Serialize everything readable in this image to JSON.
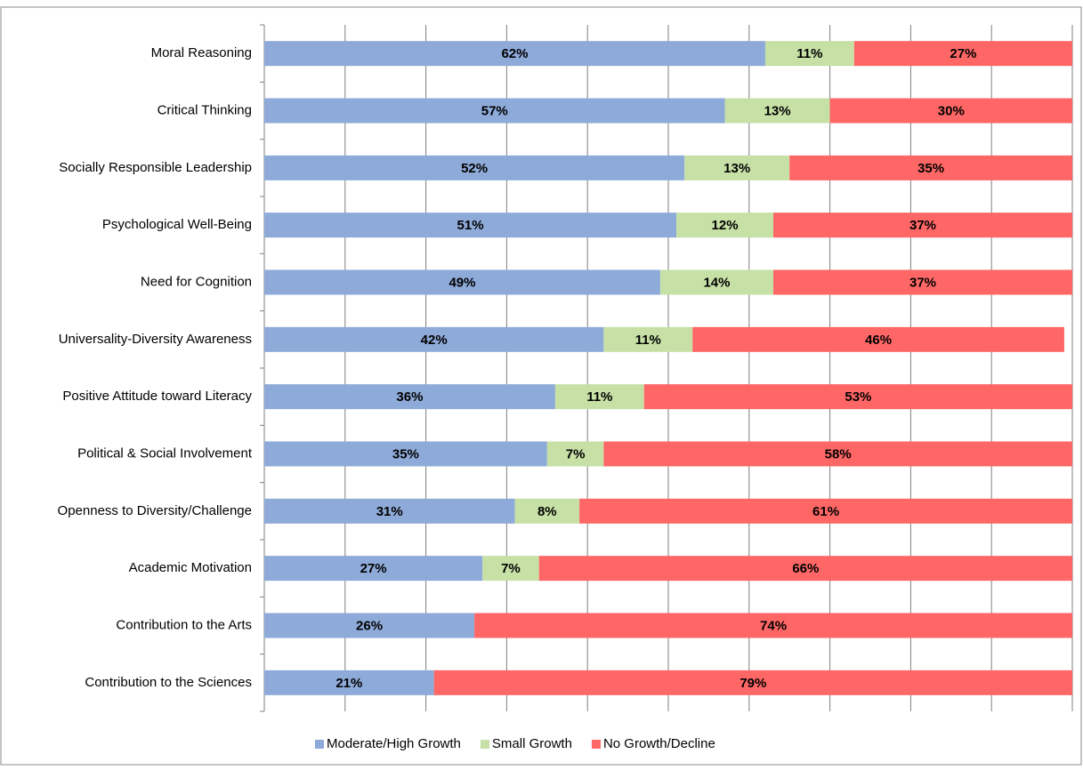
{
  "chart_data": {
    "type": "stacked-bar-horizontal",
    "categories": [
      "Moral Reasoning",
      "Critical Thinking",
      "Socially Responsible Leadership",
      "Psychological Well-Being",
      "Need for Cognition",
      "Universality-Diversity Awareness",
      "Positive Attitude toward Literacy",
      "Political & Social Involvement",
      "Openness to Diversity/Challenge",
      "Academic Motivation",
      "Contribution to the Arts",
      "Contribution to the Sciences"
    ],
    "series": [
      {
        "name": "Moderate/High Growth",
        "color": "#8eaad9",
        "values": [
          62,
          57,
          52,
          51,
          49,
          42,
          36,
          35,
          31,
          27,
          26,
          21
        ],
        "value_labels": [
          "62%",
          "57%",
          "52%",
          "51%",
          "49%",
          "42%",
          "36%",
          "35%",
          "31%",
          "27%",
          "26%",
          "21%"
        ]
      },
      {
        "name": "Small Growth",
        "color": "#c6e0a6",
        "values": [
          11,
          13,
          13,
          12,
          14,
          11,
          11,
          7,
          8,
          7,
          null,
          null
        ],
        "value_labels": [
          "11%",
          "13%",
          "13%",
          "12%",
          "14%",
          "11%",
          "11%",
          "7%",
          "8%",
          "7%",
          null,
          null
        ]
      },
      {
        "name": "No Growth/Decline",
        "color": "#ff6666",
        "values": [
          27,
          30,
          35,
          37,
          37,
          46,
          53,
          58,
          61,
          66,
          74,
          79
        ],
        "value_labels": [
          "27%",
          "30%",
          "35%",
          "37%",
          "37%",
          "46%",
          "53%",
          "58%",
          "61%",
          "66%",
          "74%",
          "79%"
        ]
      }
    ],
    "xlim": [
      0,
      100
    ],
    "xticks": [
      0,
      10,
      20,
      30,
      40,
      50,
      60,
      70,
      80,
      90,
      100
    ],
    "grid": true,
    "legend": "bottom"
  }
}
